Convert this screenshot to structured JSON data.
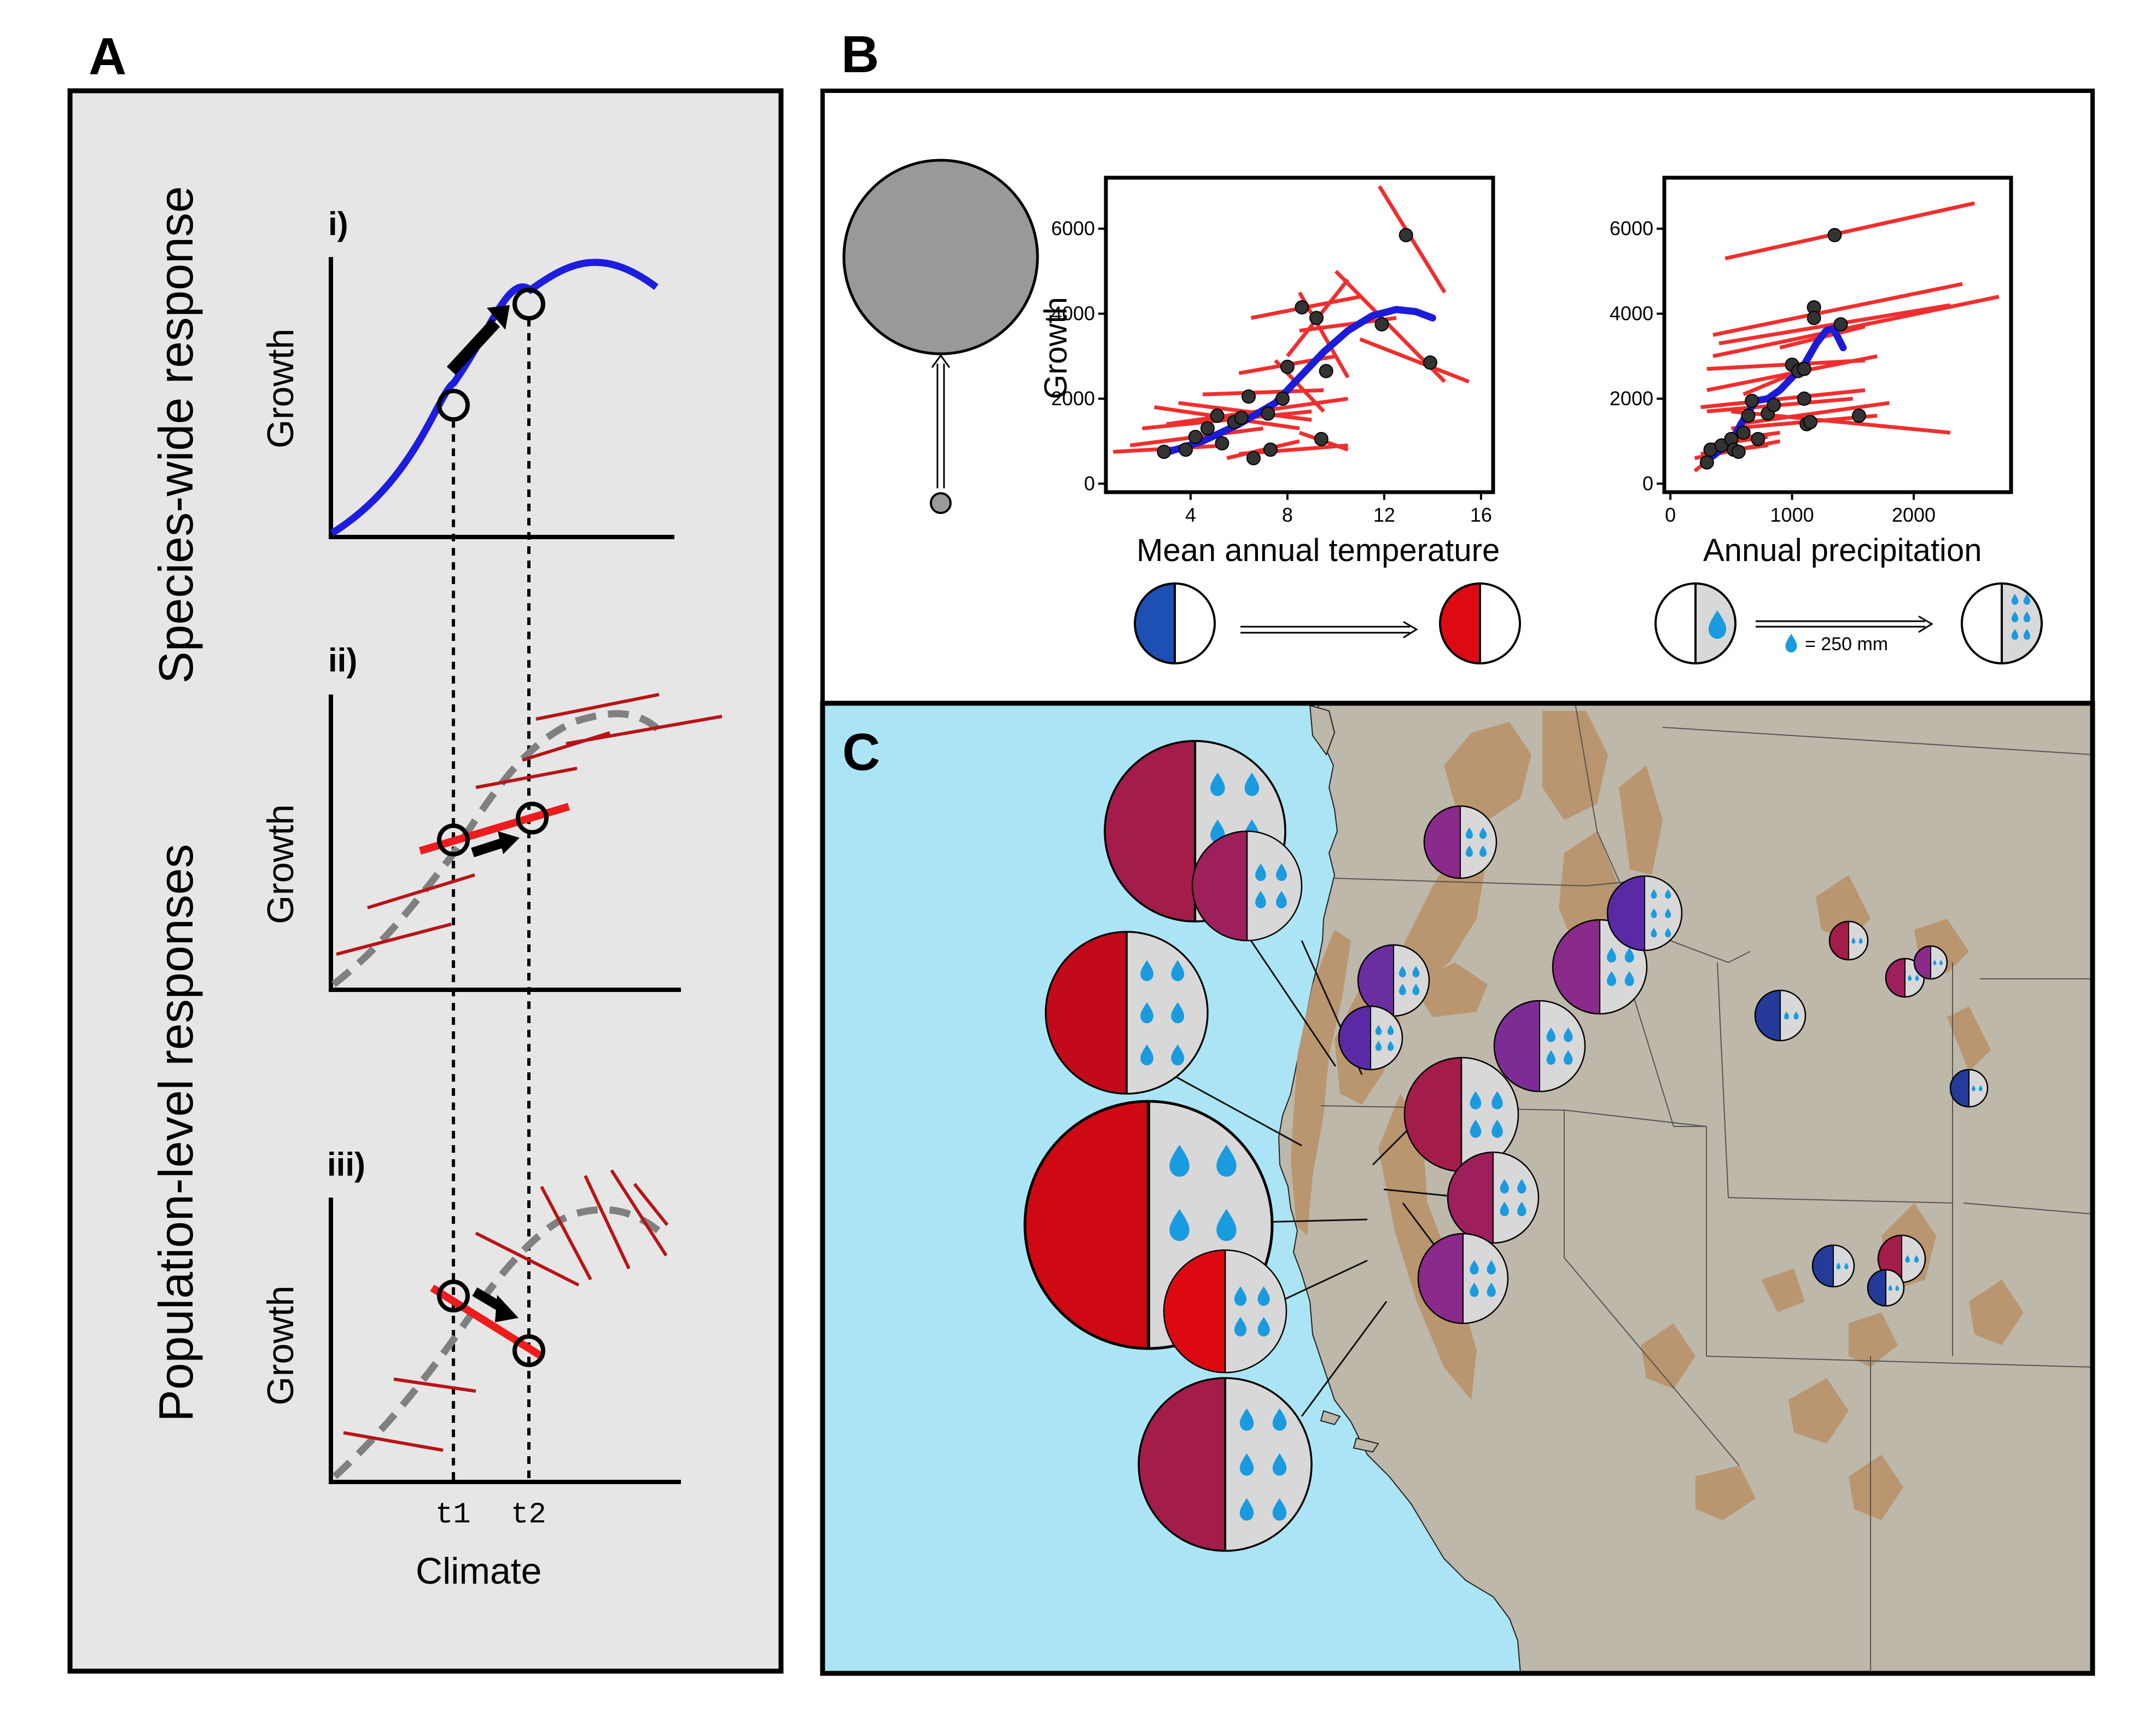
{
  "panels": {
    "a_letter": "A",
    "b_letter": "B",
    "c_letter": "C"
  },
  "panel_a": {
    "species_label": "Species-wide response",
    "population_label": "Population-level responses",
    "sub_i": "i)",
    "sub_ii": "ii)",
    "sub_iii": "iii)",
    "ylabel": "Growth",
    "xlabel": "Climate",
    "t1": "t1",
    "t2": "t2",
    "colors": {
      "species": "#1d1ddf",
      "population": "#c0101a",
      "dashed": "#808080"
    }
  },
  "panel_b": {
    "ylabel": "Growth",
    "temp_xlabel": "Mean annual temperature",
    "precip_xlabel": "Annual precipitation",
    "legend_drop": "= 250 mm",
    "colors": {
      "cold": "#1e4fb4",
      "warm": "#dd0a14",
      "fit": "#1b1bd8",
      "pop_lines": "#ee2f2f",
      "drop": "#1a9be0"
    }
  },
  "chart_data": [
    {
      "type": "scatter",
      "xlabel": "Mean annual temperature",
      "ylabel": "Growth",
      "xlim": [
        0.5,
        16.5
      ],
      "ylim": [
        -200,
        7200
      ],
      "xticks": [
        "4",
        "8",
        "12",
        "16"
      ],
      "yticks": [
        "0",
        "2000",
        "4000",
        "6000"
      ],
      "points": [
        {
          "x": 2.9,
          "y": 750
        },
        {
          "x": 3.8,
          "y": 800
        },
        {
          "x": 4.2,
          "y": 1100
        },
        {
          "x": 4.7,
          "y": 1300
        },
        {
          "x": 5.1,
          "y": 1600
        },
        {
          "x": 5.3,
          "y": 950
        },
        {
          "x": 5.8,
          "y": 1450
        },
        {
          "x": 6.1,
          "y": 1550
        },
        {
          "x": 6.4,
          "y": 2050
        },
        {
          "x": 6.6,
          "y": 600
        },
        {
          "x": 7.2,
          "y": 1650
        },
        {
          "x": 7.3,
          "y": 800
        },
        {
          "x": 7.8,
          "y": 2000
        },
        {
          "x": 8.0,
          "y": 2750
        },
        {
          "x": 8.6,
          "y": 4150
        },
        {
          "x": 9.2,
          "y": 3900
        },
        {
          "x": 9.4,
          "y": 1050
        },
        {
          "x": 9.6,
          "y": 2650
        },
        {
          "x": 11.9,
          "y": 3750
        },
        {
          "x": 12.9,
          "y": 5850
        },
        {
          "x": 13.9,
          "y": 2850
        }
      ],
      "population_slopes": [
        {
          "x0": 0.8,
          "y0": 750,
          "x1": 5.5,
          "y1": 900
        },
        {
          "x0": 1.5,
          "y0": 900,
          "x1": 7.0,
          "y1": 1300
        },
        {
          "x0": 2.0,
          "y0": 1300,
          "x1": 9.0,
          "y1": 1700
        },
        {
          "x0": 2.5,
          "y0": 1800,
          "x1": 8.5,
          "y1": 1300
        },
        {
          "x0": 3.0,
          "y0": 1400,
          "x1": 10.5,
          "y1": 2000
        },
        {
          "x0": 3.5,
          "y0": 1900,
          "x1": 9.0,
          "y1": 1500
        },
        {
          "x0": 5.5,
          "y0": 600,
          "x1": 8.5,
          "y1": 1000
        },
        {
          "x0": 6.0,
          "y0": 700,
          "x1": 10.5,
          "y1": 900
        },
        {
          "x0": 4.5,
          "y0": 2100,
          "x1": 9.5,
          "y1": 2200
        },
        {
          "x0": 6.0,
          "y0": 2600,
          "x1": 10.0,
          "y1": 3000
        },
        {
          "x0": 7.5,
          "y0": 2900,
          "x1": 9.5,
          "y1": 1700
        },
        {
          "x0": 6.5,
          "y0": 3900,
          "x1": 11.0,
          "y1": 4400
        },
        {
          "x0": 8.0,
          "y0": 3000,
          "x1": 10.5,
          "y1": 4800
        },
        {
          "x0": 8.5,
          "y0": 4500,
          "x1": 10.5,
          "y1": 2500
        },
        {
          "x0": 8.5,
          "y0": 3600,
          "x1": 12.5,
          "y1": 3900
        },
        {
          "x0": 10.0,
          "y0": 5000,
          "x1": 14.5,
          "y1": 2400
        },
        {
          "x0": 11.0,
          "y0": 3400,
          "x1": 15.5,
          "y1": 2400
        },
        {
          "x0": 11.8,
          "y0": 7000,
          "x1": 14.5,
          "y1": 4500
        },
        {
          "x0": 8.5,
          "y0": 1200,
          "x1": 10.5,
          "y1": 800
        }
      ],
      "fit_curve": [
        {
          "x": 2.8,
          "y": 700
        },
        {
          "x": 4.5,
          "y": 1000
        },
        {
          "x": 6.0,
          "y": 1400
        },
        {
          "x": 7.5,
          "y": 1900
        },
        {
          "x": 8.5,
          "y": 2500
        },
        {
          "x": 9.5,
          "y": 3100
        },
        {
          "x": 10.5,
          "y": 3600
        },
        {
          "x": 11.5,
          "y": 3950
        },
        {
          "x": 12.5,
          "y": 4100
        },
        {
          "x": 13.3,
          "y": 4050
        },
        {
          "x": 14.0,
          "y": 3900
        }
      ]
    },
    {
      "type": "scatter",
      "xlabel": "Annual precipitation",
      "ylabel": "",
      "xlim": [
        -50,
        2800
      ],
      "ylim": [
        -200,
        7200
      ],
      "xticks": [
        "0",
        "1000",
        "2000"
      ],
      "yticks": [
        "0",
        "2000",
        "4000",
        "6000"
      ],
      "points": [
        {
          "x": 300,
          "y": 500
        },
        {
          "x": 330,
          "y": 800
        },
        {
          "x": 420,
          "y": 900
        },
        {
          "x": 500,
          "y": 1050
        },
        {
          "x": 520,
          "y": 800
        },
        {
          "x": 560,
          "y": 750
        },
        {
          "x": 600,
          "y": 1200
        },
        {
          "x": 640,
          "y": 1600
        },
        {
          "x": 670,
          "y": 1950
        },
        {
          "x": 720,
          "y": 1050
        },
        {
          "x": 800,
          "y": 1650
        },
        {
          "x": 850,
          "y": 1850
        },
        {
          "x": 1000,
          "y": 2800
        },
        {
          "x": 1050,
          "y": 2650
        },
        {
          "x": 1100,
          "y": 2700
        },
        {
          "x": 1100,
          "y": 2000
        },
        {
          "x": 1120,
          "y": 1400
        },
        {
          "x": 1150,
          "y": 1450
        },
        {
          "x": 1180,
          "y": 4150
        },
        {
          "x": 1180,
          "y": 3900
        },
        {
          "x": 1350,
          "y": 5850
        },
        {
          "x": 1400,
          "y": 3750
        },
        {
          "x": 1550,
          "y": 1600
        }
      ],
      "population_slopes": [
        {
          "x0": 450,
          "y0": 5300,
          "x1": 2500,
          "y1": 6600
        },
        {
          "x0": 350,
          "y0": 3500,
          "x1": 2400,
          "y1": 4700
        },
        {
          "x0": 350,
          "y0": 3000,
          "x1": 2700,
          "y1": 4400
        },
        {
          "x0": 400,
          "y0": 3300,
          "x1": 2300,
          "y1": 4200
        },
        {
          "x0": 300,
          "y0": 2200,
          "x1": 1700,
          "y1": 3000
        },
        {
          "x0": 300,
          "y0": 2700,
          "x1": 1600,
          "y1": 2900
        },
        {
          "x0": 250,
          "y0": 1800,
          "x1": 1600,
          "y1": 2200
        },
        {
          "x0": 300,
          "y0": 1700,
          "x1": 1500,
          "y1": 2000
        },
        {
          "x0": 550,
          "y0": 1400,
          "x1": 1800,
          "y1": 1900
        },
        {
          "x0": 500,
          "y0": 1700,
          "x1": 2300,
          "y1": 1200
        },
        {
          "x0": 500,
          "y0": 1300,
          "x1": 1700,
          "y1": 1600
        },
        {
          "x0": 200,
          "y0": 300,
          "x1": 650,
          "y1": 1300
        },
        {
          "x0": 200,
          "y0": 600,
          "x1": 900,
          "y1": 1000
        },
        {
          "x0": 250,
          "y0": 700,
          "x1": 800,
          "y1": 900
        },
        {
          "x0": 300,
          "y0": 900,
          "x1": 800,
          "y1": 1100
        },
        {
          "x0": 400,
          "y0": 1000,
          "x1": 900,
          "y1": 1200
        },
        {
          "x0": 600,
          "y0": 2100,
          "x1": 1100,
          "y1": 2700
        },
        {
          "x0": 900,
          "y0": 3200,
          "x1": 1600,
          "y1": 3700
        }
      ],
      "fit_curve": [
        {
          "x": 350,
          "y": 650
        },
        {
          "x": 500,
          "y": 1000
        },
        {
          "x": 600,
          "y": 1500
        },
        {
          "x": 700,
          "y": 1950
        },
        {
          "x": 800,
          "y": 2000
        },
        {
          "x": 900,
          "y": 2200
        },
        {
          "x": 1000,
          "y": 2500
        },
        {
          "x": 1100,
          "y": 2800
        },
        {
          "x": 1200,
          "y": 3300
        },
        {
          "x": 1280,
          "y": 3600
        },
        {
          "x": 1340,
          "y": 3650
        },
        {
          "x": 1420,
          "y": 3200
        }
      ]
    }
  ],
  "map_sites": [
    {
      "color": "#a31c4a",
      "drops": 6
    },
    {
      "color": "#c20a1a",
      "drops": 6
    },
    {
      "color": "#cf0913",
      "drops": 6
    },
    {
      "color": "#a31c4a",
      "drops": 6
    },
    {
      "color": "#9d1f5b",
      "drops": 4
    },
    {
      "color": "#dc0a10",
      "drops": 4
    },
    {
      "color": "#8a2a8a",
      "drops": 4
    },
    {
      "color": "#6a2ea0",
      "drops": 4
    },
    {
      "color": "#5a2aa6",
      "drops": 4
    },
    {
      "color": "#a31c4a",
      "drops": 4
    },
    {
      "color": "#9d1f5b",
      "drops": 4
    },
    {
      "color": "#8a2a8a",
      "drops": 4
    },
    {
      "color": "#8a2a8a",
      "drops": 4
    },
    {
      "color": "#7e2c95",
      "drops": 4
    },
    {
      "color": "#5a2aa6",
      "drops": 6
    },
    {
      "color": "#8a2a8a",
      "drops": 4
    },
    {
      "color": "#a31c4a",
      "drops": 2
    },
    {
      "color": "#9d1f5b",
      "drops": 2
    },
    {
      "color": "#8a2a8a",
      "drops": 2
    },
    {
      "color": "#243b9a",
      "drops": 2
    },
    {
      "color": "#243b9a",
      "drops": 2
    },
    {
      "color": "#243b9a",
      "drops": 2
    },
    {
      "color": "#a31c4a",
      "drops": 2
    },
    {
      "color": "#243b9a",
      "drops": 2
    }
  ]
}
